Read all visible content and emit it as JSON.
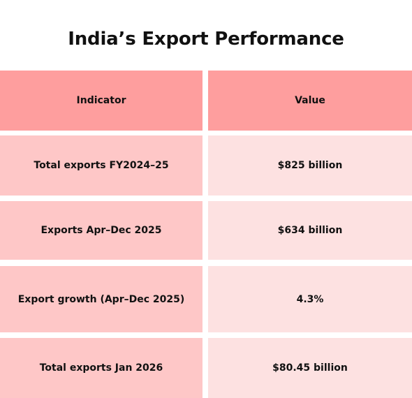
{
  "title": "India’s Export Performance",
  "table": {
    "headers": [
      "Indicator",
      "Value"
    ],
    "rows": [
      [
        "Total exports FY2024–25",
        "$825 billion"
      ],
      [
        "Exports Apr–Dec 2025",
        "$634 billion"
      ],
      [
        "Export growth (Apr–Dec 2025)",
        "4.3%"
      ],
      [
        "Total exports Jan 2026",
        "$80.45 billion"
      ]
    ]
  },
  "colors": {
    "header_fill": "#fe9e9e",
    "indicator_fill": "#fec7c7",
    "value_fill": "#fde1e1"
  }
}
